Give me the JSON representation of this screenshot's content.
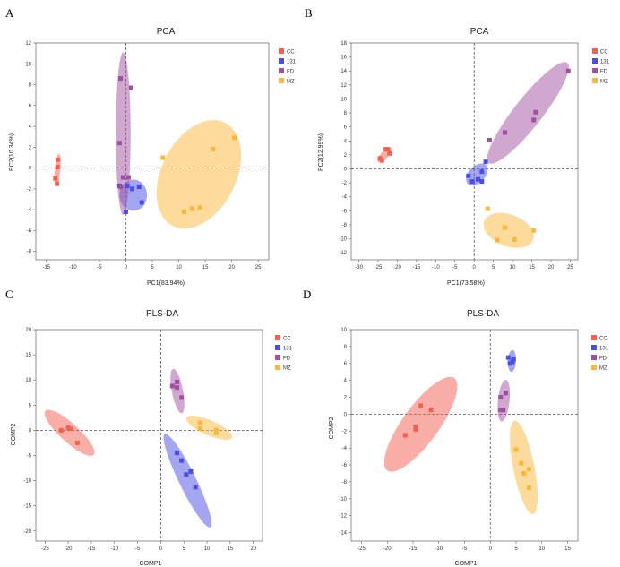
{
  "colors": {
    "CC": "#f4604f",
    "131": "#4a4ee6",
    "FD": "#a050a0",
    "MZ": "#f9b73c"
  },
  "chart_data": [
    {
      "panel": "A",
      "type": "scatter",
      "title": "PCA",
      "xlabel": "PC1(83.94%)",
      "ylabel": "PC2(10.34%)",
      "xlim": [
        -17,
        27
      ],
      "ylim": [
        -8.8,
        12
      ],
      "xticks": [
        -15,
        -10,
        -5,
        0,
        5,
        10,
        15,
        20,
        25
      ],
      "yticks": [
        -8,
        -6,
        -4,
        -2,
        0,
        2,
        4,
        6,
        8,
        10,
        12
      ],
      "legend": [
        "CC",
        "131",
        "FD",
        "MZ"
      ],
      "legend_position": "top-right",
      "series": [
        {
          "name": "CC",
          "points": [
            [
              -12.8,
              0.8
            ],
            [
              -12.9,
              0.1
            ],
            [
              -13.3,
              -1.0
            ],
            [
              -13.0,
              -1.5
            ]
          ],
          "ellipse": {
            "cx": -12.9,
            "cy": -0.2,
            "rx": 1.6,
            "ry": 0.5,
            "angle": 80
          }
        },
        {
          "name": "131",
          "points": [
            [
              -1.2,
              -1.7
            ],
            [
              0.3,
              -1.7
            ],
            [
              1.2,
              -2.0
            ],
            [
              2.5,
              -1.8
            ],
            [
              3.0,
              -3.3
            ],
            [
              0.0,
              -4.2
            ]
          ],
          "ellipse": {
            "cx": 1.4,
            "cy": -2.6,
            "rx": 1.5,
            "ry": 2.6,
            "angle": 90
          }
        },
        {
          "name": "FD",
          "points": [
            [
              -1.0,
              8.6
            ],
            [
              1.0,
              7.7
            ],
            [
              -1.2,
              2.4
            ],
            [
              -0.5,
              -0.9
            ],
            [
              -1.0,
              -1.8
            ],
            [
              0.5,
              -0.9
            ]
          ],
          "ellipse": {
            "cx": -0.5,
            "cy": 3.3,
            "rx": 7.8,
            "ry": 1.4,
            "angle": 90
          }
        },
        {
          "name": "MZ",
          "points": [
            [
              7.0,
              1.0
            ],
            [
              16.5,
              1.8
            ],
            [
              20.5,
              2.9
            ],
            [
              11.0,
              -4.2
            ],
            [
              12.5,
              -3.9
            ],
            [
              14.0,
              -3.8
            ]
          ],
          "ellipse": {
            "cx": 13.8,
            "cy": -0.6,
            "rx": 7.0,
            "ry": 4.5,
            "angle": 45
          }
        }
      ]
    },
    {
      "panel": "B",
      "type": "scatter",
      "title": "PCA",
      "xlabel": "PC1(73.58%)",
      "ylabel": "PC2(12.99%)",
      "xlim": [
        -32,
        27
      ],
      "ylim": [
        -13,
        18
      ],
      "xticks": [
        -30,
        -25,
        -20,
        -15,
        -10,
        -5,
        0,
        5,
        10,
        15,
        20,
        25
      ],
      "yticks": [
        -12,
        -10,
        -8,
        -6,
        -4,
        -2,
        0,
        2,
        4,
        6,
        8,
        10,
        12,
        14,
        16,
        18
      ],
      "legend": [
        "CC",
        "131",
        "FD",
        "MZ"
      ],
      "legend_position": "top-right",
      "series": [
        {
          "name": "CC",
          "points": [
            [
              -24.5,
              1.5
            ],
            [
              -24.0,
              1.2
            ],
            [
              -23.0,
              2.8
            ],
            [
              -22.5,
              2.8
            ],
            [
              -22.0,
              2.2
            ]
          ],
          "ellipse": {
            "cx": -23.3,
            "cy": 2.0,
            "rx": 2.0,
            "ry": 0.6,
            "angle": 30
          }
        },
        {
          "name": "131",
          "points": [
            [
              -1.5,
              -1.0
            ],
            [
              -0.5,
              -1.8
            ],
            [
              1.0,
              -1.5
            ],
            [
              2.0,
              -1.8
            ],
            [
              3.0,
              1.0
            ],
            [
              2.0,
              -0.4
            ]
          ],
          "ellipse": {
            "cx": 0.7,
            "cy": -0.8,
            "rx": 2.7,
            "ry": 1.3,
            "angle": 30
          }
        },
        {
          "name": "FD",
          "points": [
            [
              4.0,
              4.1
            ],
            [
              8.0,
              5.2
            ],
            [
              15.5,
              7.0
            ],
            [
              16.0,
              8.1
            ],
            [
              24.5,
              14.0
            ]
          ],
          "ellipse": {
            "cx": 14.0,
            "cy": 8.0,
            "rx": 12.5,
            "ry": 2.3,
            "angle": 35
          }
        },
        {
          "name": "MZ",
          "points": [
            [
              3.5,
              -5.7
            ],
            [
              6.0,
              -10.2
            ],
            [
              8.0,
              -8.4
            ],
            [
              10.5,
              -10.1
            ],
            [
              15.5,
              -8.8
            ]
          ],
          "ellipse": {
            "cx": 9.0,
            "cy": -8.8,
            "rx": 6.5,
            "ry": 2.3,
            "angle": -12
          }
        }
      ]
    },
    {
      "panel": "C",
      "type": "scatter",
      "title": "PLS-DA",
      "xlabel": "COMP1",
      "ylabel": "COMP2",
      "xlim": [
        -27,
        22
      ],
      "ylim": [
        -22,
        20
      ],
      "xticks": [
        -25,
        -20,
        -15,
        -10,
        -5,
        0,
        5,
        10,
        15,
        20
      ],
      "yticks": [
        -20,
        -15,
        -10,
        -5,
        0,
        5,
        10,
        15,
        20
      ],
      "legend": [
        "CC",
        "131",
        "FD",
        "MZ"
      ],
      "legend_position": "top-right",
      "series": [
        {
          "name": "CC",
          "points": [
            [
              -21.5,
              0.0
            ],
            [
              -20.0,
              0.5
            ],
            [
              -19.5,
              0.3
            ],
            [
              -18.0,
              -2.5
            ]
          ],
          "ellipse": {
            "cx": -19.7,
            "cy": -0.5,
            "rx": 6.8,
            "ry": 1.9,
            "angle": -40
          }
        },
        {
          "name": "131",
          "points": [
            [
              3.5,
              -4.5
            ],
            [
              4.5,
              -6.0
            ],
            [
              5.5,
              -8.8
            ],
            [
              6.5,
              -8.2
            ],
            [
              7.5,
              -11.3
            ]
          ],
          "ellipse": {
            "cx": 5.8,
            "cy": -10.0,
            "rx": 10.5,
            "ry": 1.8,
            "angle": -62
          }
        },
        {
          "name": "FD",
          "points": [
            [
              2.5,
              8.8
            ],
            [
              3.5,
              9.6
            ],
            [
              3.5,
              8.5
            ],
            [
              4.5,
              6.5
            ]
          ],
          "ellipse": {
            "cx": 3.6,
            "cy": 7.8,
            "rx": 4.5,
            "ry": 1.2,
            "angle": -78
          }
        },
        {
          "name": "MZ",
          "points": [
            [
              8.5,
              1.5
            ],
            [
              8.5,
              0.3
            ],
            [
              12.0,
              -0.5
            ],
            [
              12.0,
              0.0
            ]
          ],
          "ellipse": {
            "cx": 10.5,
            "cy": 0.5,
            "rx": 5.3,
            "ry": 1.5,
            "angle": -22
          }
        }
      ]
    },
    {
      "panel": "D",
      "type": "scatter",
      "title": "PLS-DA",
      "xlabel": "COMP1",
      "ylabel": "COMP2",
      "xlim": [
        -27,
        17
      ],
      "ylim": [
        -15,
        10
      ],
      "xticks": [
        -25,
        -20,
        -15,
        -10,
        -5,
        0,
        5,
        10,
        15
      ],
      "yticks": [
        -14,
        -12,
        -10,
        -8,
        -6,
        -4,
        -2,
        0,
        2,
        4,
        6,
        8,
        10
      ],
      "legend": [
        "CC",
        "131",
        "FD",
        "MZ"
      ],
      "legend_position": "top-right",
      "series": [
        {
          "name": "CC",
          "points": [
            [
              -16.5,
              -2.5
            ],
            [
              -14.5,
              -1.8
            ],
            [
              -14.5,
              -1.5
            ],
            [
              -13.5,
              1.0
            ],
            [
              -11.5,
              0.5
            ]
          ],
          "ellipse": {
            "cx": -13.5,
            "cy": -1.2,
            "rx": 8.5,
            "ry": 2.5,
            "angle": 40
          }
        },
        {
          "name": "131",
          "points": [
            [
              3.5,
              6.7
            ],
            [
              3.8,
              6.0
            ],
            [
              4.3,
              6.2
            ],
            [
              4.5,
              6.5
            ]
          ],
          "ellipse": {
            "cx": 4.2,
            "cy": 6.3,
            "rx": 1.3,
            "ry": 0.8,
            "angle": 85
          }
        },
        {
          "name": "FD",
          "points": [
            [
              2.0,
              2.0
            ],
            [
              2.0,
              0.5
            ],
            [
              2.5,
              0.5
            ],
            [
              3.0,
              2.5
            ]
          ],
          "ellipse": {
            "cx": 2.6,
            "cy": 1.6,
            "rx": 2.5,
            "ry": 1.1,
            "angle": 80
          }
        },
        {
          "name": "MZ",
          "points": [
            [
              5.0,
              -4.2
            ],
            [
              6.0,
              -5.8
            ],
            [
              6.5,
              -7.0
            ],
            [
              7.5,
              -6.5
            ],
            [
              7.5,
              -8.7
            ]
          ],
          "ellipse": {
            "cx": 6.5,
            "cy": -6.3,
            "rx": 5.8,
            "ry": 1.9,
            "angle": -72
          }
        }
      ]
    }
  ]
}
